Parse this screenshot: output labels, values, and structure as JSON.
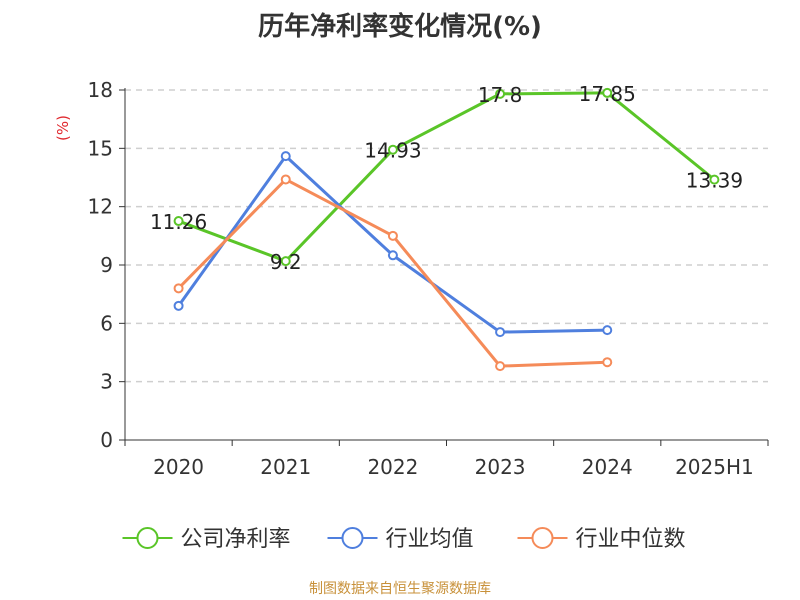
{
  "title": "历年净利率变化情况(%)",
  "source": "制图数据来自恒生聚源数据库",
  "colors": {
    "company": "#5ac528",
    "industry_avg": "#4f7fde",
    "industry_median": "#f58b59",
    "unit": "#e0282e",
    "source": "#c8913a",
    "grid": "#cfcfcf",
    "axis": "#333333",
    "text": "#333333"
  },
  "chart_data": {
    "type": "line",
    "title": "历年净利率变化情况(%)",
    "ylabel": "(%)",
    "ylim": [
      0,
      18
    ],
    "yticks": [
      0,
      3,
      6,
      9,
      12,
      15,
      18
    ],
    "categories": [
      "2020",
      "2021",
      "2022",
      "2023",
      "2024",
      "2025H1"
    ],
    "grid": "horizontal dashed",
    "legend_position": "bottom",
    "series": [
      {
        "name": "公司净利率",
        "color": "#5ac528",
        "values": [
          11.26,
          9.2,
          14.93,
          17.8,
          17.85,
          13.39
        ],
        "labels": [
          "11.26",
          "9.2",
          "14.93",
          "17.8",
          "17.85",
          "13.39"
        ]
      },
      {
        "name": "行业均值",
        "color": "#4f7fde",
        "values": [
          6.9,
          14.6,
          9.5,
          5.55,
          5.65,
          null
        ]
      },
      {
        "name": "行业中位数",
        "color": "#f58b59",
        "values": [
          7.8,
          13.4,
          10.5,
          3.8,
          4.0,
          null
        ]
      }
    ]
  }
}
